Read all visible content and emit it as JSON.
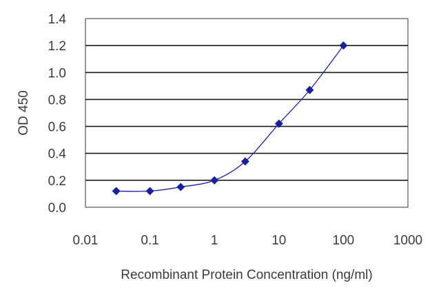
{
  "chart_data": {
    "type": "line",
    "title": "",
    "xlabel": "Recombinant Protein Concentration (ng/ml)",
    "ylabel": "OD 450",
    "x_scale": "log",
    "xlim": [
      0.01,
      1000
    ],
    "ylim": [
      0.0,
      1.4
    ],
    "x_ticks": [
      "0.01",
      "0.1",
      "1",
      "10",
      "100",
      "1000"
    ],
    "y_ticks": [
      "0.0",
      "0.2",
      "0.4",
      "0.6",
      "0.8",
      "1.0",
      "1.2",
      "1.4"
    ],
    "grid": "horizontal",
    "legend": "none",
    "series": [
      {
        "x": [
          0.03,
          0.1,
          0.3,
          1,
          3,
          10,
          30,
          100
        ],
        "y": [
          0.12,
          0.12,
          0.15,
          0.2,
          0.34,
          0.62,
          0.87,
          1.2
        ]
      }
    ],
    "colors": {
      "series": "#1a1f9c",
      "grid": "#1a1a1a",
      "text": "#3a3a3a"
    }
  }
}
